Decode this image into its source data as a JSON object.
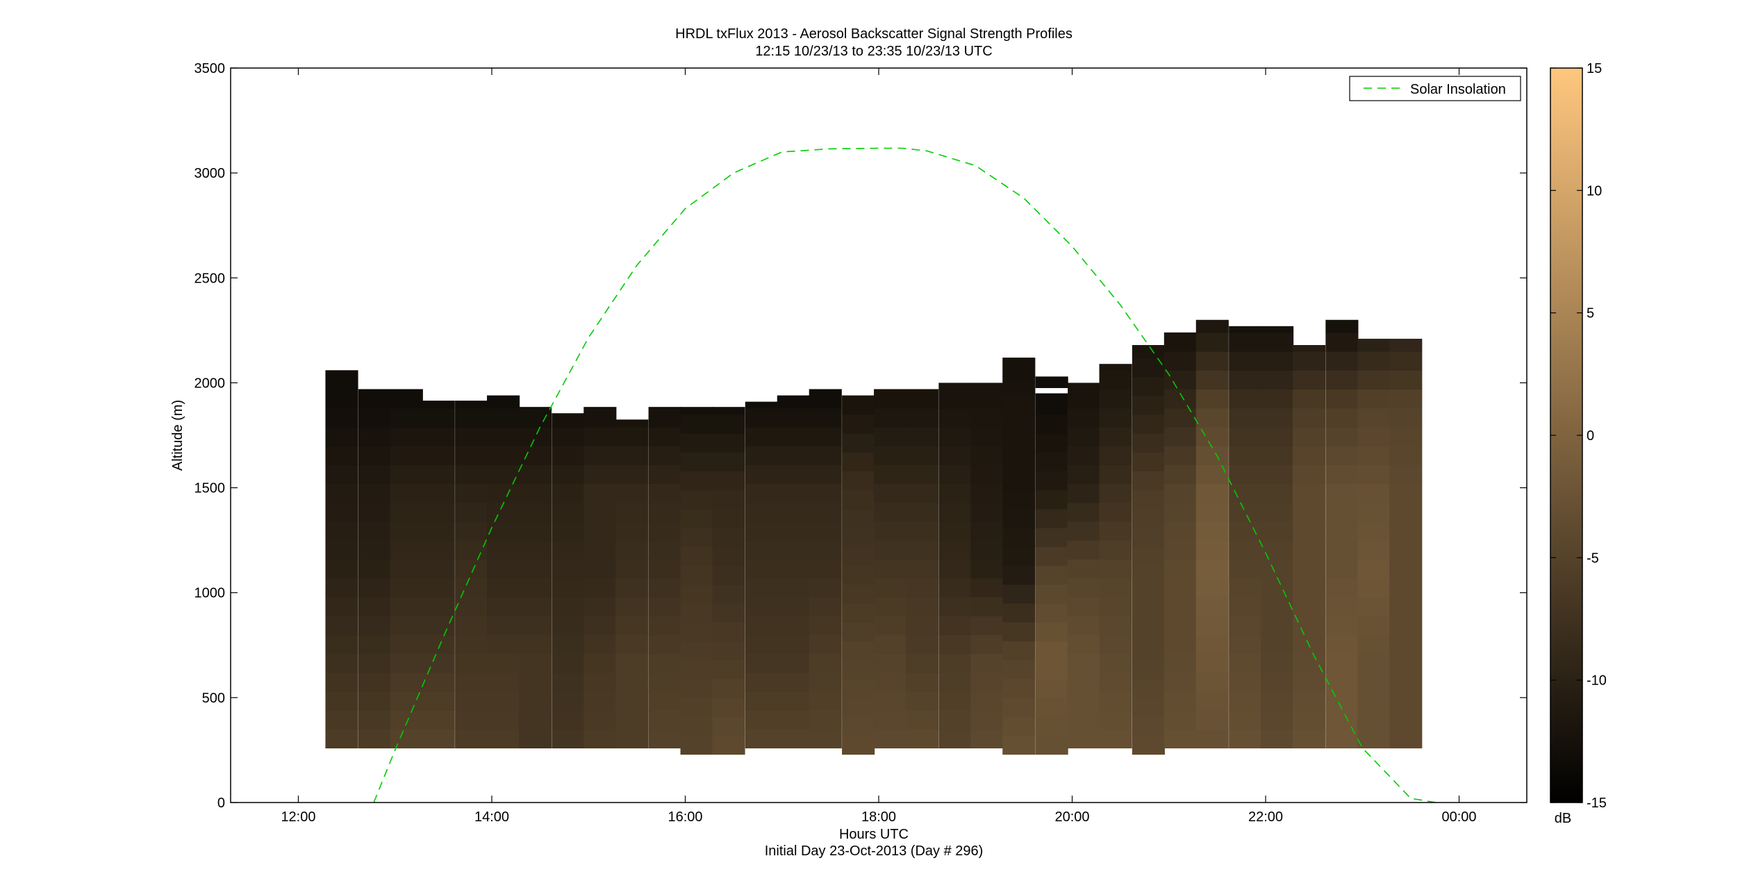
{
  "chart_data": {
    "type": "heatmap",
    "title": "HRDL txFlux 2013 - Aerosol Backscatter Signal Strength Profiles",
    "subtitle": "12:15 10/23/13 to 23:35 10/23/13  UTC",
    "xlabel": "Hours UTC",
    "xlabel2": "Initial Day 23-Oct-2013 (Day # 296)",
    "ylabel": "Altitude (m)",
    "xlim": [
      11.3,
      24.7
    ],
    "ylim": [
      0,
      3500
    ],
    "x_ticks": [
      12,
      14,
      16,
      18,
      20,
      22,
      24
    ],
    "x_tick_labels": [
      "12:00",
      "14:00",
      "16:00",
      "18:00",
      "20:00",
      "22:00",
      "00:00"
    ],
    "y_ticks": [
      0,
      500,
      1000,
      1500,
      2000,
      2500,
      3000,
      3500
    ],
    "y_tick_labels": [
      "0",
      "500",
      "1000",
      "1500",
      "2000",
      "2500",
      "3000",
      "3500"
    ],
    "colorbar": {
      "label": "dB",
      "lim": [
        -15,
        15
      ],
      "ticks": [
        -15,
        -10,
        -5,
        0,
        5,
        10,
        15
      ],
      "tick_labels": [
        "-15",
        "-10",
        "-5",
        "0",
        "5",
        "10",
        "15"
      ],
      "colors": [
        "#000000",
        "#ffc77f"
      ]
    },
    "grid": false,
    "legend_placement": "top-right",
    "series": [
      {
        "name": "Solar Insolation",
        "style": "dashed",
        "color": "#00cc00",
        "x": [
          12.78,
          13.0,
          13.5,
          14.0,
          14.5,
          15.0,
          15.5,
          16.0,
          16.5,
          17.0,
          17.5,
          18.0,
          18.25,
          18.5,
          19.0,
          19.5,
          20.0,
          20.5,
          21.0,
          21.5,
          22.0,
          22.5,
          23.0,
          23.5,
          23.76
        ],
        "y": [
          0,
          250,
          790,
          1310,
          1790,
          2215,
          2560,
          2830,
          3000,
          3100,
          3115,
          3118,
          3118,
          3105,
          3035,
          2880,
          2650,
          2370,
          2040,
          1650,
          1190,
          700,
          260,
          20,
          0
        ]
      }
    ],
    "profiles": {
      "start_hours": [
        12.28,
        12.62,
        12.95,
        13.28,
        13.62,
        13.95,
        14.28,
        14.62,
        14.95,
        15.28,
        15.62,
        15.95,
        16.28,
        16.62,
        16.95,
        17.28,
        17.62,
        17.95,
        18.28,
        18.62,
        18.95,
        19.28,
        19.62,
        19.95,
        20.28,
        20.62,
        20.95,
        21.28,
        21.62,
        21.95,
        22.28,
        22.62,
        22.95,
        23.28
      ],
      "width_hours": 0.334,
      "top_m": [
        2060,
        1970,
        1970,
        1915,
        1915,
        1940,
        1885,
        1855,
        1885,
        1825,
        1885,
        1885,
        1885,
        1910,
        1940,
        1970,
        1940,
        1970,
        1970,
        2000,
        2000,
        2120,
        2030,
        2000,
        2090,
        2180,
        2240,
        2300,
        2270,
        2270,
        2180,
        2300,
        2210,
        2210
      ],
      "bottom_m": [
        260,
        260,
        260,
        260,
        260,
        260,
        260,
        260,
        260,
        260,
        260,
        230,
        230,
        260,
        260,
        260,
        230,
        260,
        260,
        260,
        260,
        230,
        230,
        260,
        260,
        230,
        260,
        260,
        260,
        260,
        260,
        260,
        260,
        260
      ],
      "gap_m": [
        [
          19.62,
          19.95,
          1950,
          1975
        ]
      ],
      "altitudes_m": [
        300,
        700,
        1100,
        1500,
        1900,
        2300
      ],
      "signal_db": [
        [
          -6,
          -8,
          -10,
          -11,
          -13,
          -13
        ],
        [
          -6,
          -8,
          -10,
          -11,
          -13,
          -13
        ],
        [
          -5,
          -7,
          -9,
          -10,
          -13,
          -13
        ],
        [
          -5,
          -7,
          -9,
          -10,
          -13,
          -13
        ],
        [
          -6,
          -7,
          -8,
          -10,
          -13,
          -13
        ],
        [
          -6,
          -7,
          -9,
          -10,
          -13,
          -13
        ],
        [
          -7,
          -7,
          -9,
          -10,
          -13,
          -13
        ],
        [
          -7,
          -8,
          -9,
          -10,
          -13,
          -13
        ],
        [
          -6,
          -7,
          -9,
          -9,
          -13,
          -13
        ],
        [
          -6,
          -6,
          -8,
          -9,
          -13,
          -13
        ],
        [
          -5,
          -6,
          -8,
          -9,
          -13,
          -13
        ],
        [
          -5,
          -6,
          -7,
          -9,
          -13,
          -13
        ],
        [
          -4,
          -6,
          -8,
          -9,
          -13,
          -13
        ],
        [
          -5,
          -7,
          -8,
          -9,
          -13,
          -13
        ],
        [
          -5,
          -7,
          -8,
          -9,
          -13,
          -13
        ],
        [
          -5,
          -6,
          -8,
          -9,
          -13,
          -13
        ],
        [
          -4,
          -5,
          -7,
          -8,
          -12,
          -13
        ],
        [
          -4,
          -5,
          -7,
          -9,
          -12,
          -13
        ],
        [
          -4,
          -6,
          -7,
          -9,
          -12,
          -13
        ],
        [
          -5,
          -6,
          -9,
          -10,
          -12,
          -13
        ],
        [
          -4,
          -5,
          -10,
          -11,
          -12,
          -13
        ],
        [
          -3,
          -5,
          -11,
          -12,
          -12,
          -13
        ],
        [
          -3,
          -2,
          -5,
          -11,
          -13,
          -13
        ],
        [
          -3,
          -3,
          -5,
          -10,
          -12,
          -13
        ],
        [
          -3,
          -4,
          -5,
          -8,
          -11,
          -13
        ],
        [
          -4,
          -5,
          -5,
          -6,
          -10,
          -13
        ],
        [
          -3,
          -4,
          -4,
          -5,
          -9,
          -13
        ],
        [
          -3,
          -2,
          -1,
          -2,
          -5,
          -12
        ],
        [
          -3,
          -4,
          -5,
          -6,
          -8,
          -13
        ],
        [
          -4,
          -5,
          -5,
          -6,
          -8,
          -13
        ],
        [
          -3,
          -4,
          -4,
          -4,
          -6,
          -13
        ],
        [
          -2,
          -2,
          -3,
          -3,
          -6,
          -13
        ],
        [
          -3,
          -3,
          -2,
          -3,
          -5,
          -12
        ],
        [
          -4,
          -4,
          -4,
          -4,
          -5,
          -11
        ]
      ]
    }
  }
}
